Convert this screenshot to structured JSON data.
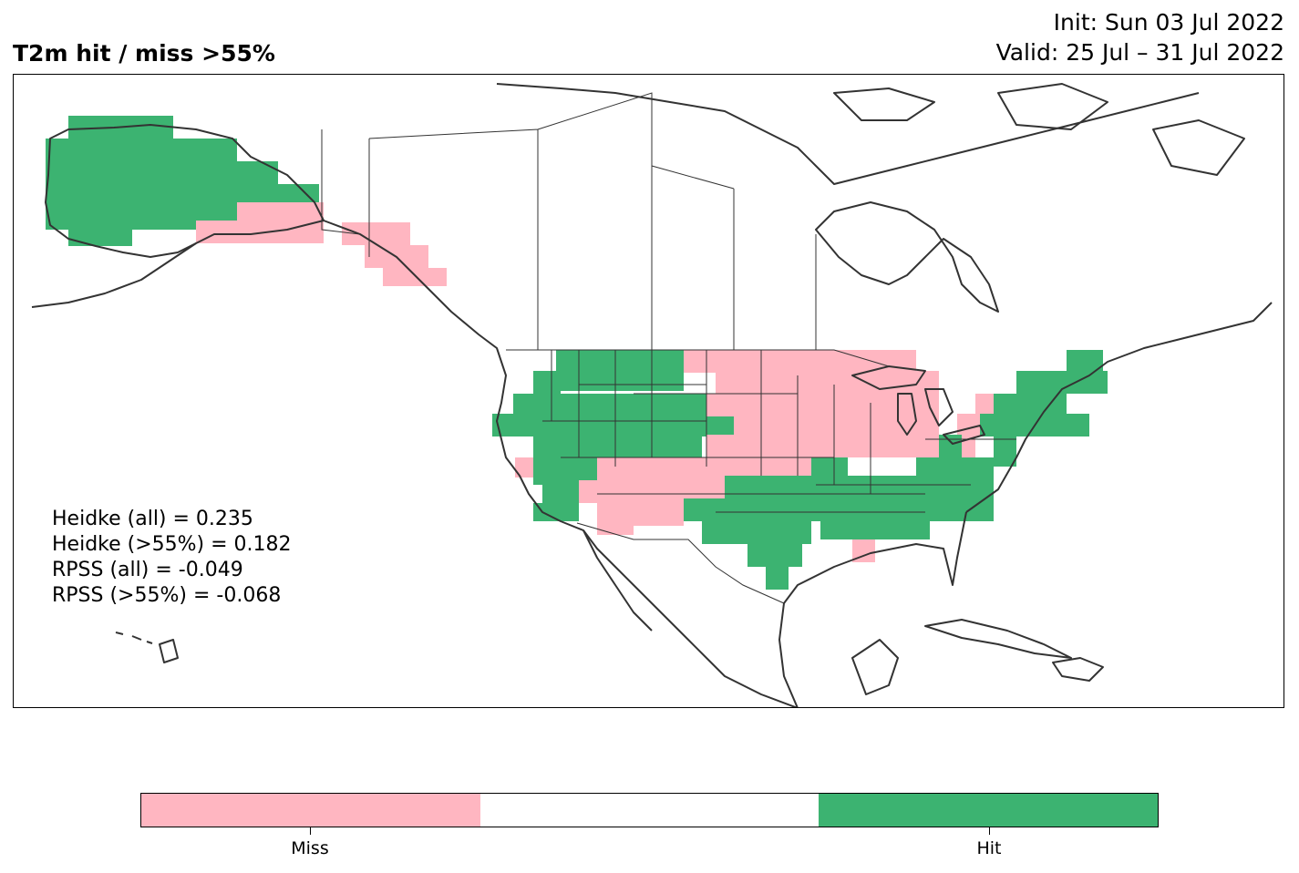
{
  "title": "T2m hit / miss  >55%",
  "init": "Init: Sun 03 Jul 2022",
  "valid": "Valid: 25 Jul – 31 Jul 2022",
  "colors": {
    "miss": "#ffb6c1",
    "neutral": "#ffffff",
    "hit": "#3cb371",
    "coast": "#333333",
    "border": "#333333"
  },
  "stats": [
    "Heidke (all) = 0.235",
    "Heidke (>55%) = 0.182",
    "RPSS (all) = -0.049",
    "RPSS (>55%) = -0.068"
  ],
  "colorbar": {
    "categories": [
      "Miss",
      "",
      "Hit"
    ],
    "labels": {
      "miss": "Miss",
      "hit": "Hit"
    }
  }
}
